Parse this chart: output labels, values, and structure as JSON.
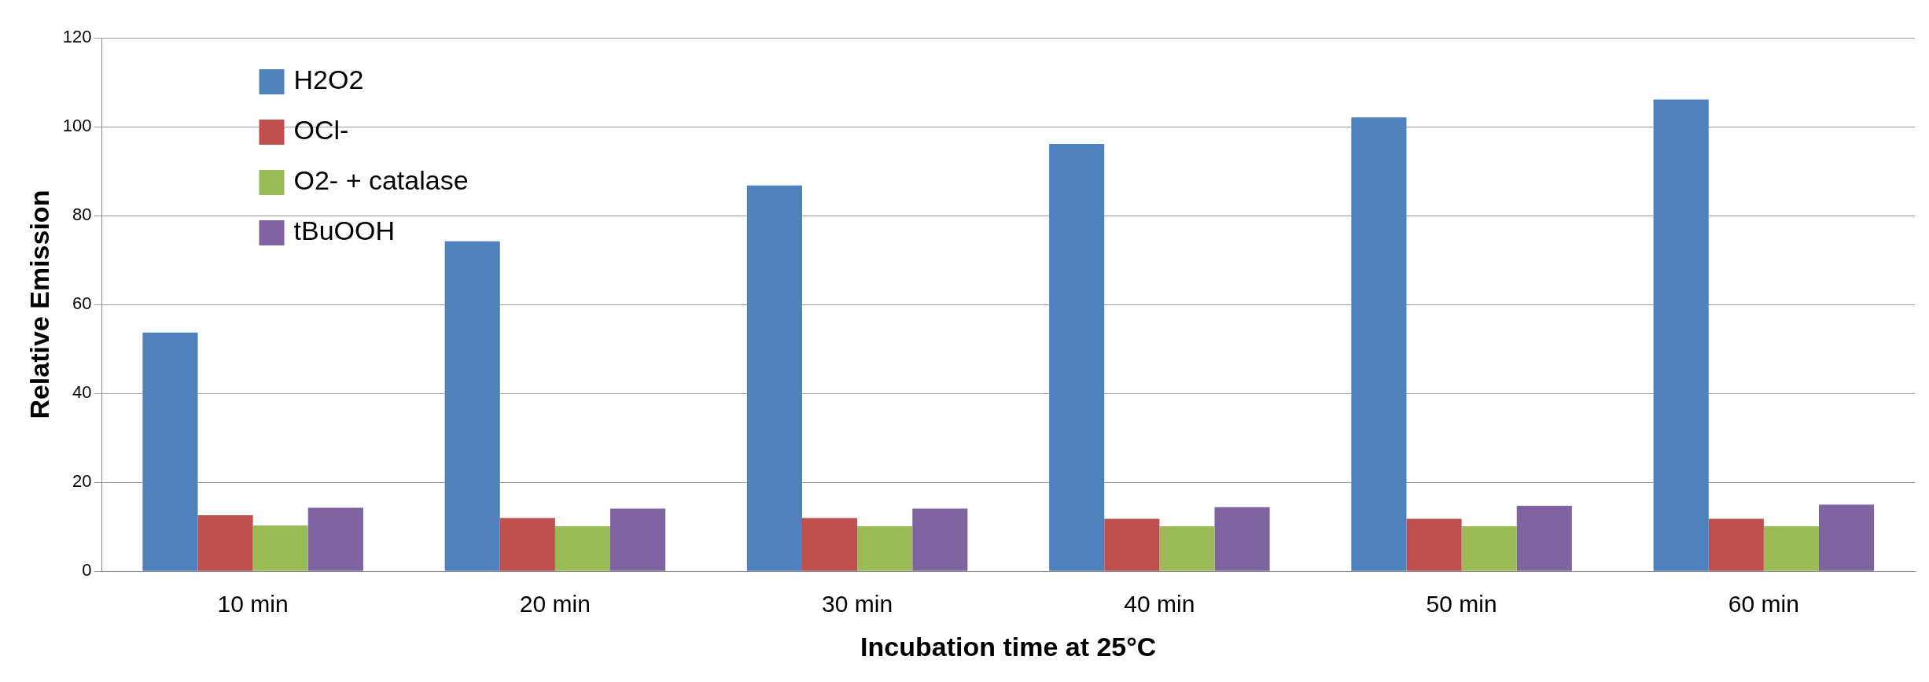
{
  "chart_data": {
    "type": "bar",
    "xlabel": "Incubation time at 25°C",
    "ylabel": "Relative Emission",
    "categories": [
      "10 min",
      "20 min",
      "30 min",
      "40 min",
      "50 min",
      "60 min"
    ],
    "series": [
      {
        "name": "H2O2",
        "color": "#4f81bd",
        "values": [
          53.7,
          74.2,
          86.8,
          96.1,
          102.1,
          106.1
        ]
      },
      {
        "name": "OCl-",
        "color": "#c0504d",
        "values": [
          12.6,
          12.0,
          12.0,
          11.8,
          11.8,
          11.8
        ]
      },
      {
        "name": "O2- + catalase",
        "color": "#9bbb59",
        "values": [
          10.3,
          10.1,
          10.1,
          10.1,
          10.1,
          10.1
        ]
      },
      {
        "name": "tBuOOH",
        "color": "#8064a2",
        "values": [
          14.3,
          14.1,
          14.1,
          14.4,
          14.7,
          15.0
        ]
      }
    ],
    "ylim": [
      0,
      120
    ],
    "yticks": [
      0,
      20,
      40,
      60,
      80,
      100,
      120
    ],
    "grid": "y",
    "legend": "top left"
  }
}
